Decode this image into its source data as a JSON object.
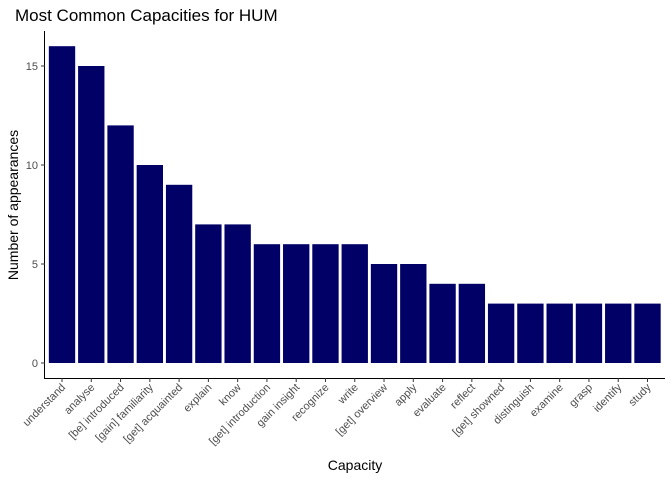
{
  "chart_data": {
    "type": "bar",
    "title": "Most Common Capacities for HUM",
    "xlabel": "Capacity",
    "ylabel": "Number of appearances",
    "categories": [
      "understand",
      "analyse",
      "[be] introduced",
      "[gain] familiarity",
      "[get] acquainted",
      "explain",
      "know",
      "[get] introduction",
      "gain insight",
      "recognize",
      "write",
      "[get] overview",
      "apply",
      "evaluate",
      "reflect",
      "[get] showned",
      "distinguish",
      "examine",
      "grasp",
      "identify",
      "study"
    ],
    "values": [
      16,
      15,
      12,
      10,
      9,
      7,
      7,
      6,
      6,
      6,
      6,
      5,
      5,
      4,
      4,
      3,
      3,
      3,
      3,
      3,
      3
    ],
    "ylim": [
      0,
      16.8
    ],
    "yticks": [
      0,
      5,
      10,
      15
    ],
    "bar_color": "#000066",
    "grid": false,
    "legend": "none"
  }
}
